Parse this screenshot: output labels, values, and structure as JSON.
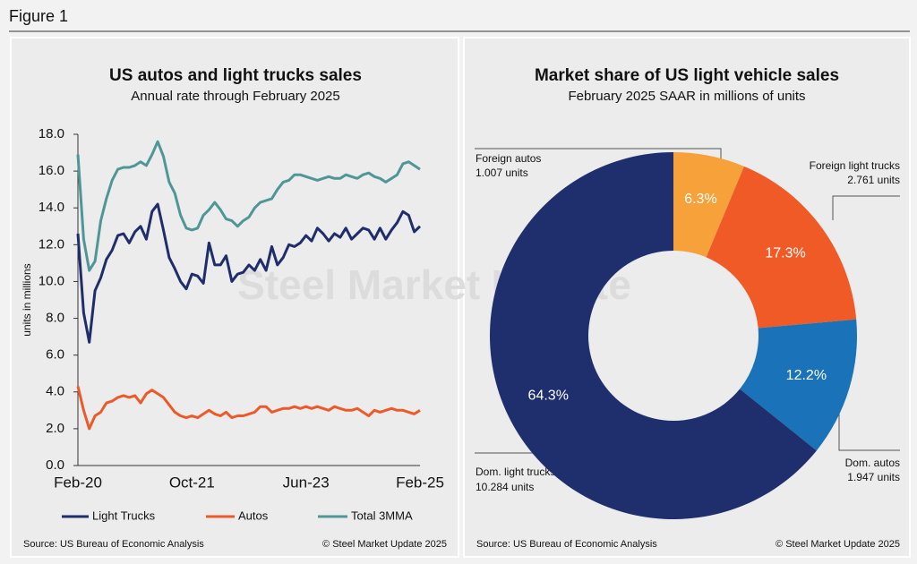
{
  "figure_label": "Figure 1",
  "chart_data": [
    {
      "type": "line",
      "title": "US autos and light trucks sales",
      "subtitle": "Annual rate through February 2025",
      "y_label": "units in millions",
      "watermark": "Steel Market Update",
      "source": "Source: US Bureau of Economic Analysis",
      "credit": "© Steel Market Update 2025",
      "categories": [
        "Feb-20",
        null,
        null,
        null,
        null,
        null,
        null,
        null,
        null,
        null,
        null,
        null,
        null,
        null,
        null,
        null,
        null,
        null,
        null,
        null,
        "Oct-21",
        null,
        null,
        null,
        null,
        null,
        null,
        null,
        null,
        null,
        null,
        null,
        null,
        null,
        null,
        null,
        null,
        null,
        null,
        null,
        "Jun-23",
        null,
        null,
        null,
        null,
        null,
        null,
        null,
        null,
        null,
        null,
        null,
        null,
        null,
        null,
        null,
        null,
        null,
        null,
        null,
        "Feb-25"
      ],
      "series": [
        {
          "name": "Light Trucks",
          "color": "#1f2d6b",
          "values": [
            12.6,
            8.3,
            6.7,
            9.5,
            10.2,
            11.2,
            11.7,
            12.5,
            12.6,
            12.1,
            12.7,
            13.0,
            12.3,
            13.8,
            14.2,
            12.8,
            11.3,
            10.7,
            10.0,
            9.6,
            10.4,
            10.3,
            9.9,
            12.1,
            10.9,
            10.9,
            11.4,
            10.0,
            10.4,
            10.5,
            10.9,
            10.6,
            11.2,
            10.6,
            11.9,
            10.9,
            11.3,
            12.0,
            11.9,
            12.1,
            12.5,
            12.2,
            12.9,
            12.6,
            12.2,
            12.6,
            12.4,
            12.9,
            12.3,
            12.6,
            12.9,
            12.8,
            12.3,
            12.9,
            12.3,
            12.8,
            13.2,
            13.8,
            13.6,
            12.7,
            13.0
          ]
        },
        {
          "name": "Autos",
          "color": "#ec5a2a",
          "values": [
            4.3,
            3.0,
            2.0,
            2.7,
            2.9,
            3.4,
            3.5,
            3.7,
            3.8,
            3.7,
            3.8,
            3.4,
            3.9,
            4.1,
            3.9,
            3.7,
            3.3,
            2.9,
            2.7,
            2.6,
            2.7,
            2.6,
            2.8,
            3.0,
            2.8,
            2.7,
            2.9,
            2.6,
            2.7,
            2.7,
            2.8,
            2.9,
            3.2,
            3.2,
            2.9,
            3.0,
            3.1,
            3.1,
            3.2,
            3.1,
            3.2,
            3.1,
            3.2,
            3.1,
            3.0,
            3.2,
            3.1,
            3.0,
            3.0,
            3.1,
            2.9,
            2.7,
            3.0,
            2.9,
            3.0,
            3.1,
            3.0,
            3.0,
            2.9,
            2.8,
            3.0
          ]
        },
        {
          "name": "Total 3MMA",
          "color": "#4f9696",
          "values": [
            16.9,
            12.3,
            10.6,
            11.1,
            13.3,
            14.5,
            15.5,
            16.1,
            16.2,
            16.2,
            16.3,
            16.5,
            16.3,
            16.9,
            17.6,
            16.8,
            15.4,
            14.8,
            13.6,
            12.9,
            12.8,
            12.9,
            13.6,
            13.9,
            14.3,
            13.9,
            13.4,
            13.3,
            13.0,
            13.3,
            13.5,
            14.0,
            14.3,
            14.4,
            14.5,
            15.0,
            15.4,
            15.5,
            15.8,
            15.8,
            15.7,
            15.6,
            15.5,
            15.6,
            15.7,
            15.6,
            15.6,
            15.8,
            15.7,
            15.6,
            15.8,
            15.9,
            15.7,
            15.6,
            15.4,
            15.6,
            15.8,
            16.4,
            16.5,
            16.3,
            16.1
          ]
        }
      ],
      "ylim": [
        0,
        18
      ],
      "yticks": [
        {
          "value": 0,
          "label": "0.0"
        },
        {
          "value": 2,
          "label": "2.0"
        },
        {
          "value": 4,
          "label": "4.0"
        },
        {
          "value": 6,
          "label": "6.0"
        },
        {
          "value": 8,
          "label": "8.0"
        },
        {
          "value": 10,
          "label": "10.0"
        },
        {
          "value": 12,
          "label": "12.0"
        },
        {
          "value": 14,
          "label": "14.0"
        },
        {
          "value": 16,
          "label": "16.0"
        },
        {
          "value": 18,
          "label": "18.0"
        }
      ],
      "legend": "bottom"
    },
    {
      "type": "donut",
      "title": "Market share of US light vehicle sales",
      "subtitle": "February 2025 SAAR in millions of units",
      "source": "Source: US Bureau of Economic Analysis",
      "credit": "© Steel Market Update 2025",
      "categories": [
        "Foreign autos",
        "Foreign light trucks",
        "Dom. autos",
        "Dom. light trucks"
      ],
      "values": [
        6.3,
        17.3,
        12.2,
        64.3
      ],
      "value_labels": [
        "6.3%",
        "17.3%",
        "12.2%",
        "64.3%"
      ],
      "unit_labels": [
        "1.007 units",
        "2.761 units",
        "1.947 units",
        "10.284 units"
      ],
      "colors": [
        "#f7a13a",
        "#ef5a27",
        "#1a72b8",
        "#1f2f6e"
      ]
    }
  ]
}
